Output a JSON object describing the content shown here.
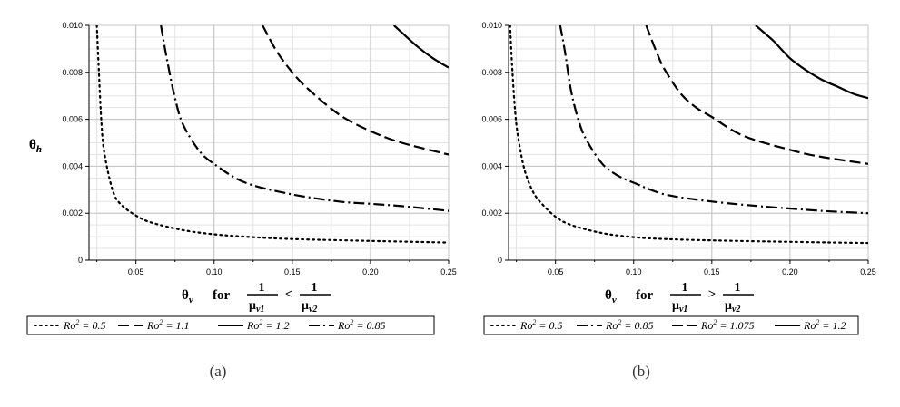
{
  "chart_data": [
    {
      "type": "line",
      "caption": "(a)",
      "ylabel_main": "θ",
      "ylabel_sub": "h",
      "xlabel_main": "θ",
      "xlabel_sub": "v",
      "xlabel_for": "for",
      "xlabel_num": "1",
      "xlabel_den1_main": "μ",
      "xlabel_den1_sub": "v1",
      "xlabel_rel": "<",
      "xlabel_den2_main": "μ",
      "xlabel_den2_sub": "v2",
      "xlim": [
        0.02,
        0.25
      ],
      "ylim": [
        0,
        0.01
      ],
      "xticks": [
        "0.05",
        "0.10",
        "0.15",
        "0.20",
        "0.25"
      ],
      "yticks": [
        "0",
        "0.002",
        "0.004",
        "0.006",
        "0.008",
        "0.010"
      ],
      "grid": true,
      "legend_position": "bottom",
      "series": [
        {
          "name": "Ro² = 0.5",
          "label_main": "Ro",
          "label_sup": "2",
          "label_rest": " = 0.5",
          "style": "dotted",
          "x": [
            0.025,
            0.026,
            0.028,
            0.03,
            0.035,
            0.04,
            0.05,
            0.06,
            0.08,
            0.1,
            0.12,
            0.15,
            0.2,
            0.25
          ],
          "y": [
            0.01,
            0.0085,
            0.0058,
            0.0045,
            0.003,
            0.0024,
            0.0019,
            0.0016,
            0.00128,
            0.0011,
            0.001,
            0.0009,
            0.00082,
            0.00075
          ]
        },
        {
          "name": "Ro² = 1.1",
          "label_main": "Ro",
          "label_sup": "2",
          "label_rest": " = 1.1",
          "style": "dashed",
          "x": [
            0.131,
            0.14,
            0.15,
            0.16,
            0.18,
            0.2,
            0.22,
            0.25
          ],
          "y": [
            0.01,
            0.0089,
            0.008,
            0.0073,
            0.0062,
            0.0055,
            0.005,
            0.0045
          ]
        },
        {
          "name": "Ro² = 1.2",
          "label_main": "Ro",
          "label_sup": "2",
          "label_rest": " = 1.2",
          "style": "solid",
          "x": [
            0.215,
            0.22,
            0.23,
            0.24,
            0.25
          ],
          "y": [
            0.01,
            0.0097,
            0.0091,
            0.0086,
            0.0082
          ]
        },
        {
          "name": "Ro² = 0.85",
          "label_main": "Ro",
          "label_sup": "2",
          "label_rest": " = 0.85",
          "style": "dashdot",
          "x": [
            0.066,
            0.07,
            0.075,
            0.08,
            0.09,
            0.1,
            0.12,
            0.15,
            0.18,
            0.2,
            0.22,
            0.25
          ],
          "y": [
            0.01,
            0.0085,
            0.0069,
            0.0058,
            0.0047,
            0.0041,
            0.0033,
            0.0028,
            0.0025,
            0.0024,
            0.0023,
            0.0021
          ]
        }
      ]
    },
    {
      "type": "line",
      "caption": "(b)",
      "ylabel_main": "θ",
      "ylabel_sub": "h",
      "xlabel_main": "θ",
      "xlabel_sub": "v",
      "xlabel_for": "for",
      "xlabel_num": "1",
      "xlabel_den1_main": "μ",
      "xlabel_den1_sub": "v1",
      "xlabel_rel": ">",
      "xlabel_den2_main": "μ",
      "xlabel_den2_sub": "v2",
      "xlim": [
        0.02,
        0.25
      ],
      "ylim": [
        0,
        0.01
      ],
      "xticks": [
        "0.05",
        "0.10",
        "0.15",
        "0.20",
        "0.25"
      ],
      "yticks": [
        "0",
        "0.002",
        "0.004",
        "0.006",
        "0.008",
        "0.010"
      ],
      "grid": true,
      "legend_position": "bottom",
      "series": [
        {
          "name": "Ro² = 0.5",
          "label_main": "Ro",
          "label_sup": "2",
          "label_rest": " = 0.5",
          "style": "dotted",
          "x": [
            0.021,
            0.022,
            0.024,
            0.026,
            0.03,
            0.035,
            0.04,
            0.05,
            0.06,
            0.08,
            0.1,
            0.12,
            0.15,
            0.2,
            0.25
          ],
          "y": [
            0.01,
            0.0086,
            0.0065,
            0.0053,
            0.0039,
            0.003,
            0.0025,
            0.00185,
            0.0015,
            0.00115,
            0.00098,
            0.0009,
            0.00084,
            0.00078,
            0.00073
          ]
        },
        {
          "name": "Ro² = 0.85",
          "label_main": "Ro",
          "label_sup": "2",
          "label_rest": " = 0.85",
          "style": "dashdot",
          "x": [
            0.053,
            0.056,
            0.06,
            0.065,
            0.07,
            0.08,
            0.09,
            0.1,
            0.12,
            0.15,
            0.18,
            0.2,
            0.22,
            0.25
          ],
          "y": [
            0.01,
            0.0089,
            0.0072,
            0.0059,
            0.0051,
            0.0041,
            0.0036,
            0.0033,
            0.0028,
            0.0025,
            0.0023,
            0.0022,
            0.0021,
            0.002
          ]
        },
        {
          "name": "Ro² = 1.075",
          "label_main": "Ro",
          "label_sup": "2",
          "label_rest": " = 1.075",
          "style": "dashed",
          "x": [
            0.108,
            0.115,
            0.12,
            0.13,
            0.14,
            0.15,
            0.17,
            0.2,
            0.22,
            0.25
          ],
          "y": [
            0.01,
            0.0088,
            0.0081,
            0.0071,
            0.0065,
            0.0061,
            0.0053,
            0.0047,
            0.0044,
            0.0041
          ]
        },
        {
          "name": "Ro² = 1.2",
          "label_main": "Ro",
          "label_sup": "2",
          "label_rest": " = 1.2",
          "style": "solid",
          "x": [
            0.178,
            0.185,
            0.19,
            0.2,
            0.21,
            0.22,
            0.23,
            0.24,
            0.25
          ],
          "y": [
            0.01,
            0.0096,
            0.0093,
            0.0086,
            0.0081,
            0.0077,
            0.0074,
            0.0071,
            0.0069
          ]
        }
      ]
    }
  ]
}
